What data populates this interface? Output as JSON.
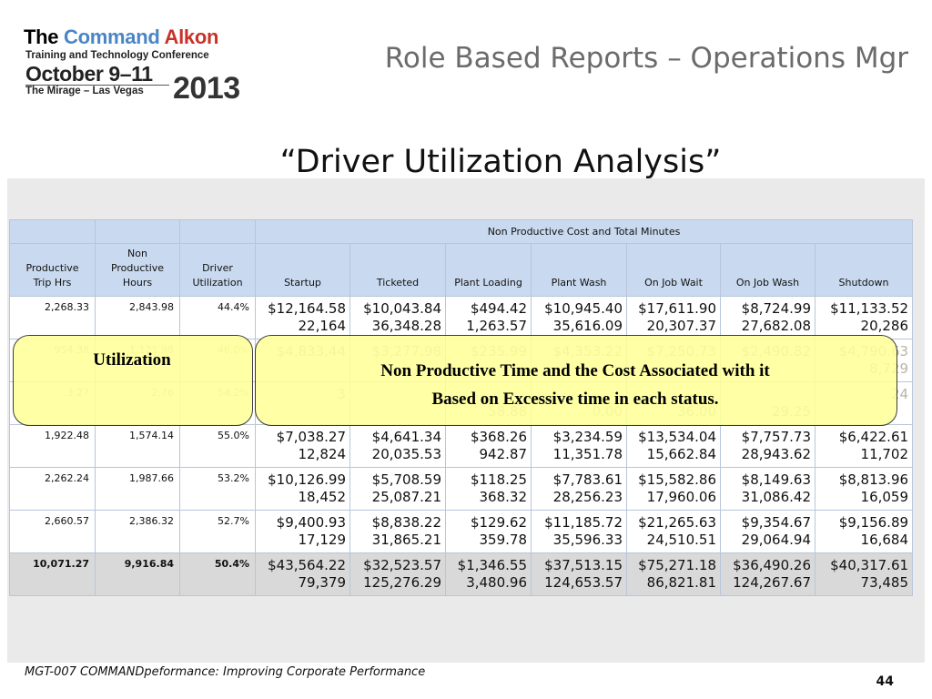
{
  "logo": {
    "word1": "The ",
    "word2": "Command ",
    "word3": "Alkon",
    "line2": "Training and Technology Conference",
    "line3": "October 9–11",
    "line4": "The Mirage – Las Vegas",
    "year": "2013"
  },
  "slide_title": "Role Based Reports – Operations Mgr",
  "subtitle": "“Driver Utilization Analysis”",
  "report": {
    "group_header": "Non Productive Cost and Total Minutes",
    "columns": [
      [
        "Productive",
        "Trip Hrs"
      ],
      [
        "Non",
        "Productive",
        "Hours"
      ],
      [
        "Driver",
        "Utilization"
      ],
      [
        "Startup"
      ],
      [
        "Ticketed"
      ],
      [
        "Plant Loading"
      ],
      [
        "Plant Wash"
      ],
      [
        "On Job Wait"
      ],
      [
        "On Job Wash"
      ],
      [
        "Shutdown"
      ]
    ],
    "rows": [
      {
        "productive": "2,268.33",
        "nonproductive": "2,843.98",
        "util": "44.4%",
        "cells": [
          [
            "$12,164.58",
            "22,164"
          ],
          [
            "$10,043.84",
            "36,348.28"
          ],
          [
            "$494.42",
            "1,263.57"
          ],
          [
            "$10,945.40",
            "35,616.09"
          ],
          [
            "$17,611.90",
            "20,307.37"
          ],
          [
            "$8,724.99",
            "27,682.08"
          ],
          [
            "$11,133.52",
            "20,286"
          ]
        ]
      },
      {
        "productive": "954.38",
        "nonproductive": "1,121.98",
        "util": "46.0%",
        "cells": [
          [
            "$4,833.44",
            ""
          ],
          [
            "$3,277.98",
            ""
          ],
          [
            "$235.99",
            ""
          ],
          [
            "$4,353.22",
            ""
          ],
          [
            "$7,250.73",
            ""
          ],
          [
            "$2,490.82",
            ""
          ],
          [
            "$4,790.63",
            "8,729"
          ]
        ]
      },
      {
        "productive": "3.27",
        "nonproductive": "2.76",
        "util": "54.2%",
        "cells": [
          [
            "3",
            ""
          ],
          [
            "",
            ""
          ],
          [
            "",
            "58.88"
          ],
          [
            "",
            "0.00"
          ],
          [
            "",
            "36.00"
          ],
          [
            "",
            "29.25"
          ],
          [
            "24",
            ""
          ]
        ]
      },
      {
        "productive": "1,922.48",
        "nonproductive": "1,574.14",
        "util": "55.0%",
        "cells": [
          [
            "$7,038.27",
            "12,824"
          ],
          [
            "$4,641.34",
            "20,035.53"
          ],
          [
            "$368.26",
            "942.87"
          ],
          [
            "$3,234.59",
            "11,351.78"
          ],
          [
            "$13,534.04",
            "15,662.84"
          ],
          [
            "$7,757.73",
            "28,943.62"
          ],
          [
            "$6,422.61",
            "11,702"
          ]
        ]
      },
      {
        "productive": "2,262.24",
        "nonproductive": "1,987.66",
        "util": "53.2%",
        "cells": [
          [
            "$10,126.99",
            "18,452"
          ],
          [
            "$5,708.59",
            "25,087.21"
          ],
          [
            "$118.25",
            "368.32"
          ],
          [
            "$7,783.61",
            "28,256.23"
          ],
          [
            "$15,582.86",
            "17,960.06"
          ],
          [
            "$8,149.63",
            "31,086.42"
          ],
          [
            "$8,813.96",
            "16,059"
          ]
        ]
      },
      {
        "productive": "2,660.57",
        "nonproductive": "2,386.32",
        "util": "52.7%",
        "cells": [
          [
            "$9,400.93",
            "17,129"
          ],
          [
            "$8,838.22",
            "31,865.21"
          ],
          [
            "$129.62",
            "359.78"
          ],
          [
            "$11,185.72",
            "35,596.33"
          ],
          [
            "$21,265.63",
            "24,510.51"
          ],
          [
            "$9,354.67",
            "29,064.94"
          ],
          [
            "$9,156.89",
            "16,684"
          ]
        ]
      }
    ],
    "total": {
      "productive": "10,071.27",
      "nonproductive": "9,916.84",
      "util": "50.4%",
      "cells": [
        [
          "$43,564.22",
          "79,379"
        ],
        [
          "$32,523.57",
          "125,276.29"
        ],
        [
          "$1,346.55",
          "3,480.96"
        ],
        [
          "$37,513.15",
          "124,653.57"
        ],
        [
          "$75,271.18",
          "86,821.81"
        ],
        [
          "$36,490.26",
          "124,267.67"
        ],
        [
          "$40,317.61",
          "73,485"
        ]
      ]
    }
  },
  "callouts": {
    "utilization": "Utilization",
    "nonproductive_line1": "Non Productive Time and the Cost Associated with it",
    "nonproductive_line2": "Based on Excessive time in each status."
  },
  "footer": {
    "text": "MGT-007 COMMANDpeformance: Improving Corporate Performance",
    "page": "44"
  }
}
